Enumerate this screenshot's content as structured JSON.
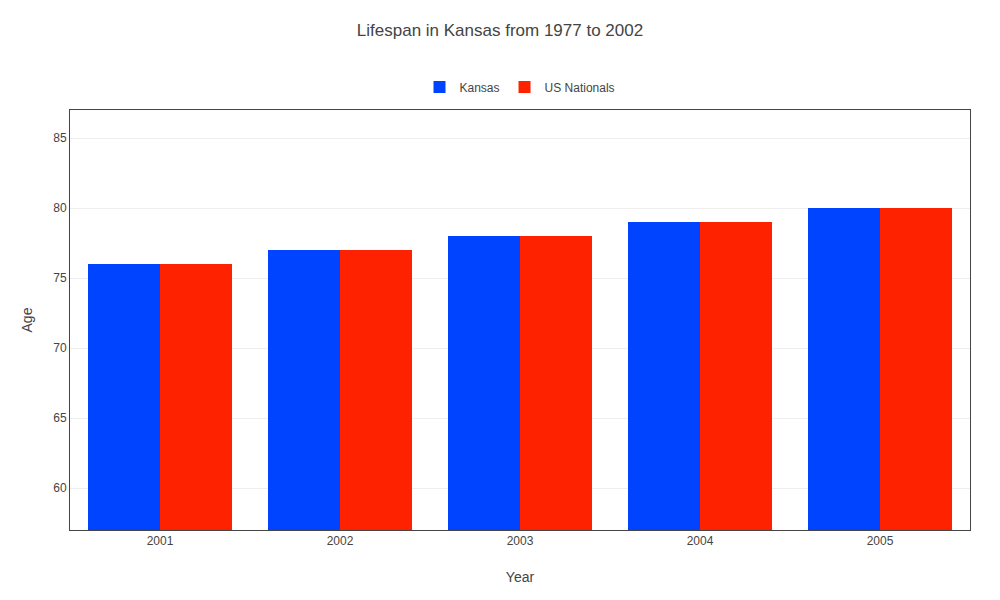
{
  "chart_data": {
    "type": "bar",
    "title": "Lifespan in Kansas from 1977 to 2002",
    "xlabel": "Year",
    "ylabel": "Age",
    "categories": [
      "2001",
      "2002",
      "2003",
      "2004",
      "2005"
    ],
    "series": [
      {
        "name": "Kansas",
        "color": "#0044ff",
        "values": [
          76,
          77,
          78,
          79,
          80
        ]
      },
      {
        "name": "US Nationals",
        "color": "#ff2200",
        "values": [
          76,
          77,
          78,
          79,
          80
        ]
      }
    ],
    "ylim": [
      57,
      87
    ],
    "yticks": [
      60,
      65,
      70,
      75,
      80,
      85
    ],
    "grid": true,
    "legend": "top"
  }
}
